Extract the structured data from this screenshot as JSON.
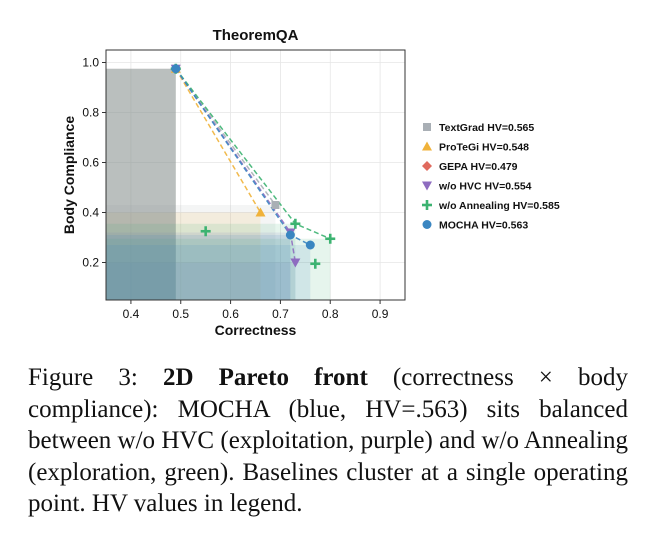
{
  "chart_data": {
    "type": "scatter",
    "title": "TheoremQA",
    "xlabel": "Correctness",
    "ylabel": "Body Compliance",
    "xlim": [
      0.35,
      0.95
    ],
    "ylim": [
      0.05,
      1.05
    ],
    "xticks": [
      "0.4",
      "0.5",
      "0.6",
      "0.7",
      "0.8",
      "0.9"
    ],
    "xtick_values": [
      0.4,
      0.5,
      0.6,
      0.7,
      0.8,
      0.9
    ],
    "yticks": [
      "0.2",
      "0.4",
      "0.6",
      "0.8",
      "1.0"
    ],
    "ytick_values": [
      0.2,
      0.4,
      0.6,
      0.8,
      1.0
    ],
    "grid": true,
    "legend_position": "right",
    "series": [
      {
        "name": "TextGrad",
        "legend_label": "TextGrad  HV=0.565",
        "marker": "square",
        "color": "#a9afb5",
        "points": [
          [
            0.49,
            0.975
          ],
          [
            0.69,
            0.43
          ]
        ],
        "front": [
          [
            0.49,
            0.975
          ],
          [
            0.69,
            0.43
          ]
        ]
      },
      {
        "name": "ProTeGi",
        "legend_label": "ProTeGi  HV=0.548",
        "marker": "triangle-up",
        "color": "#f0b23a",
        "points": [
          [
            0.49,
            0.975
          ],
          [
            0.66,
            0.4
          ]
        ],
        "front": [
          [
            0.49,
            0.975
          ],
          [
            0.66,
            0.4
          ]
        ]
      },
      {
        "name": "GEPA",
        "legend_label": "GEPA  HV=0.479",
        "marker": "diamond",
        "color": "#e06a5e",
        "points": [
          [
            0.49,
            0.975
          ]
        ],
        "front": [
          [
            0.49,
            0.975
          ]
        ]
      },
      {
        "name": "w/o HVC",
        "legend_label": "w/o HVC  HV=0.554",
        "marker": "triangle-down",
        "color": "#8e6cc0",
        "points": [
          [
            0.49,
            0.975
          ],
          [
            0.72,
            0.32
          ],
          [
            0.73,
            0.2
          ]
        ],
        "front": [
          [
            0.49,
            0.975
          ],
          [
            0.72,
            0.32
          ],
          [
            0.73,
            0.2
          ]
        ]
      },
      {
        "name": "w/o Annealing",
        "legend_label": "w/o Annealing  HV=0.585",
        "marker": "plus",
        "color": "#3cb371",
        "points": [
          [
            0.49,
            0.975
          ],
          [
            0.73,
            0.355
          ],
          [
            0.8,
            0.295
          ],
          [
            0.55,
            0.325
          ],
          [
            0.77,
            0.195
          ]
        ],
        "front": [
          [
            0.49,
            0.975
          ],
          [
            0.73,
            0.355
          ],
          [
            0.8,
            0.295
          ]
        ]
      },
      {
        "name": "MOCHA",
        "legend_label": "MOCHA  HV=0.563",
        "marker": "circle",
        "color": "#3a86c1",
        "points": [
          [
            0.49,
            0.975
          ],
          [
            0.72,
            0.31
          ],
          [
            0.76,
            0.27
          ]
        ],
        "front": [
          [
            0.49,
            0.975
          ],
          [
            0.72,
            0.31
          ],
          [
            0.76,
            0.27
          ]
        ]
      }
    ]
  },
  "caption": {
    "label": "Figure 3:",
    "bold": "2D Pareto front",
    "text": "(correctness × body compliance): MOCHA (blue, HV=.563) sits balanced between w/o HVC (exploitation, purple) and w/o Annealing (exploration, green). Baselines cluster at a single operating point. HV values in legend."
  }
}
